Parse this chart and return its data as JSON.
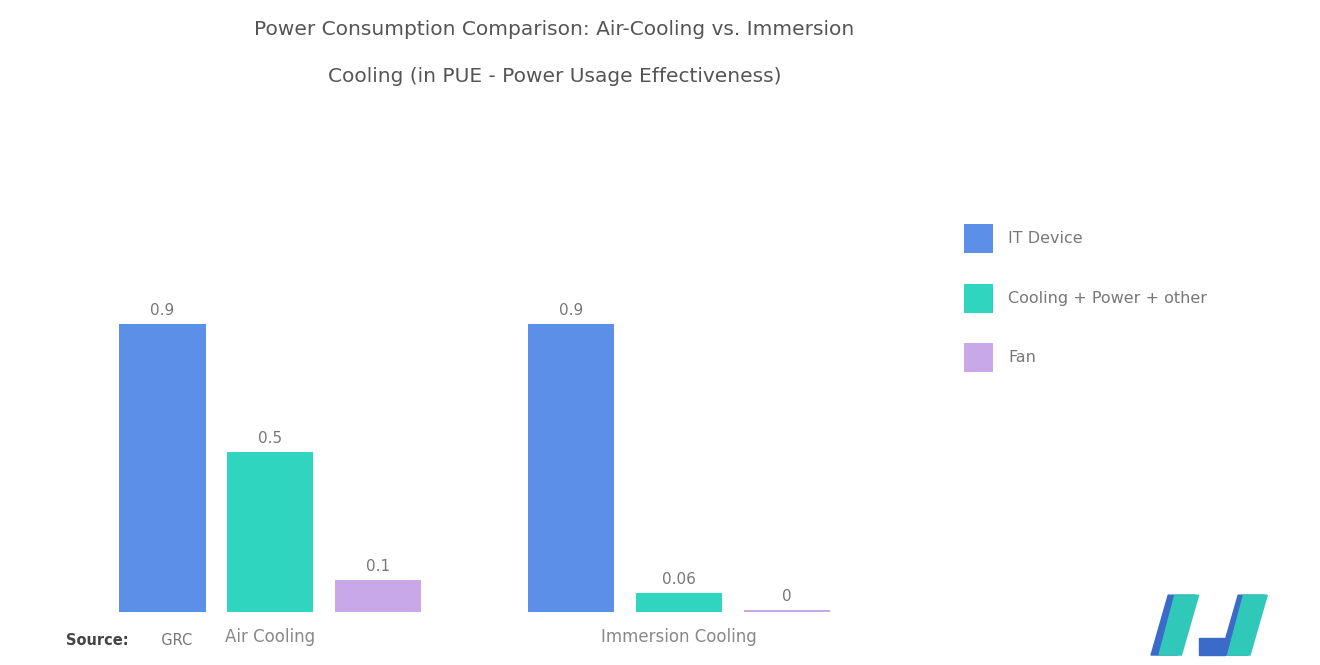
{
  "title_line1": "Power Consumption Comparison: Air-Cooling vs. Immersion",
  "title_line2": "Cooling (in PUE - Power Usage Effectiveness)",
  "groups": [
    "Air Cooling",
    "Immersion Cooling"
  ],
  "categories": [
    "IT Device",
    "Cooling + Power + other",
    "Fan"
  ],
  "values": {
    "Air Cooling": [
      0.9,
      0.5,
      0.1
    ],
    "Immersion Cooling": [
      0.9,
      0.06,
      0.0
    ]
  },
  "labels": {
    "Air Cooling": [
      "0.9",
      "0.5",
      "0.1"
    ],
    "Immersion Cooling": [
      "0.9",
      "0.06",
      "0"
    ]
  },
  "it_device_color": "#5B8FE8",
  "cooling_color": "#30D5C0",
  "fan_color": "#C8A8E8",
  "background_color": "#FFFFFF",
  "title_color": "#555555",
  "label_color": "#777777",
  "tick_color": "#888888",
  "source_bold": "Source:",
  "source_rest": "  GRC"
}
